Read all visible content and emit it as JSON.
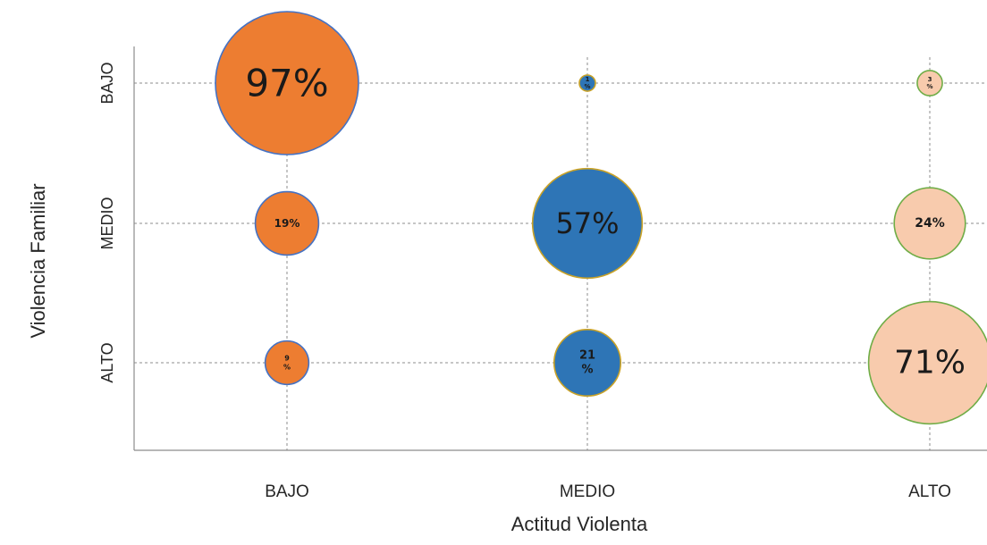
{
  "chart_data": {
    "type": "scatter",
    "xlabel": "Actitud Violenta",
    "ylabel": "Violencia Familiar",
    "x_categories": [
      "BAJO",
      "MEDIO",
      "ALTO"
    ],
    "y_categories": [
      "BAJO",
      "MEDIO",
      "ALTO"
    ],
    "grid": true,
    "colors": {
      "BAJO": {
        "fill": "#ED7D31",
        "stroke": "#4472C4"
      },
      "MEDIO": {
        "fill": "#2E75B6",
        "stroke": "#C9A227"
      },
      "ALTO": {
        "fill": "#F8CBAD",
        "stroke": "#70AD47"
      }
    },
    "points": [
      {
        "x": "BAJO",
        "y": "BAJO",
        "value": 97,
        "label": "97%"
      },
      {
        "x": "BAJO",
        "y": "MEDIO",
        "value": 19,
        "label": "19%"
      },
      {
        "x": "BAJO",
        "y": "ALTO",
        "value": 9,
        "label": "9\n%"
      },
      {
        "x": "MEDIO",
        "y": "BAJO",
        "value": 1,
        "label": "1\n%"
      },
      {
        "x": "MEDIO",
        "y": "MEDIO",
        "value": 57,
        "label": "57%"
      },
      {
        "x": "MEDIO",
        "y": "ALTO",
        "value": 21,
        "label": "21\n%"
      },
      {
        "x": "ALTO",
        "y": "BAJO",
        "value": 3,
        "label": "3\n%"
      },
      {
        "x": "ALTO",
        "y": "MEDIO",
        "value": 24,
        "label": "24%"
      },
      {
        "x": "ALTO",
        "y": "ALTO",
        "value": 71,
        "label": "71%"
      }
    ]
  }
}
